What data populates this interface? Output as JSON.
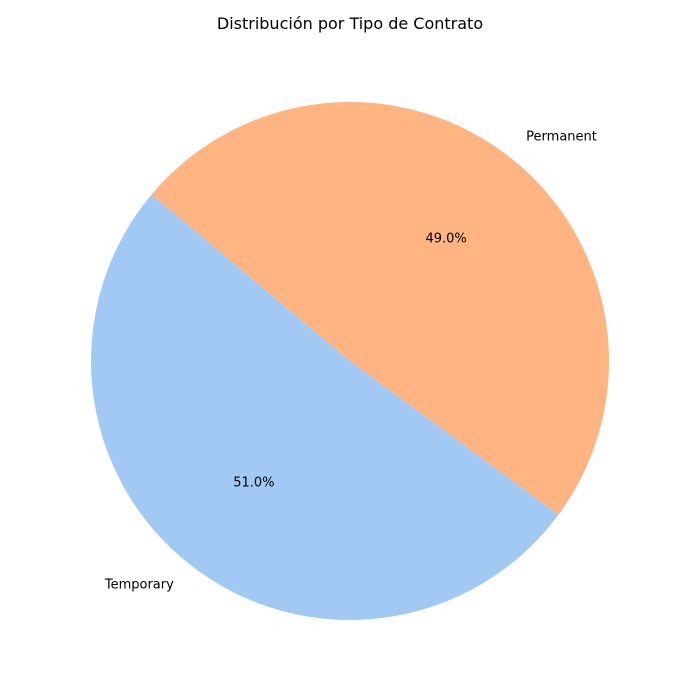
{
  "chart_data": {
    "type": "pie",
    "title": "Distribución por Tipo de Contrato",
    "categories": [
      "Temporary",
      "Permanent"
    ],
    "values": [
      51.0,
      49.0
    ],
    "percent_labels": [
      "51.0%",
      "49.0%"
    ],
    "colors": [
      "#a1c9f4",
      "#ffb482"
    ],
    "start_angle_deg": 140,
    "direction": "counterclockwise"
  }
}
